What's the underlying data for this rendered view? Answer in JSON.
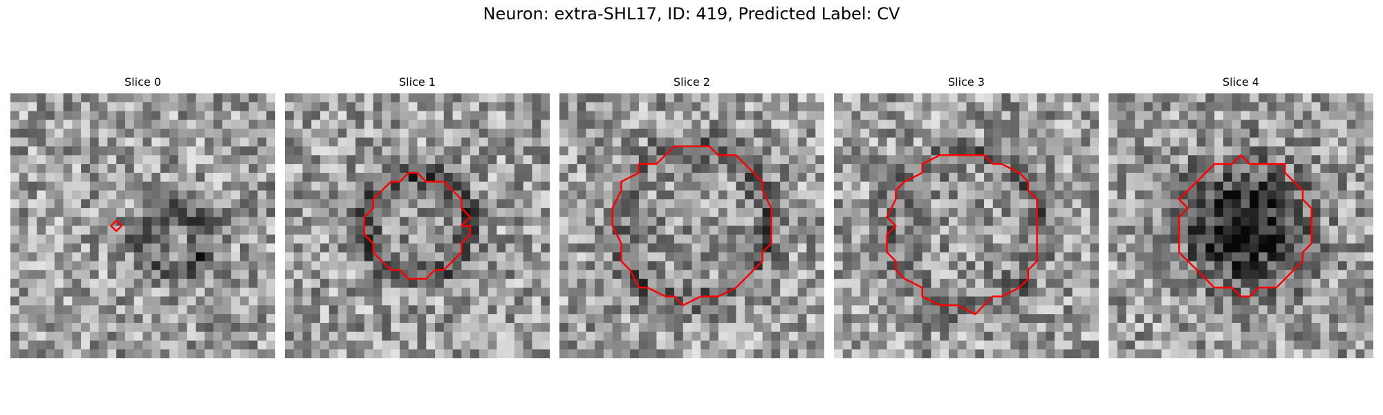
{
  "figure": {
    "title": "Neuron: extra-SHL17, ID: 419, Predicted Label: CV"
  },
  "panels": [
    {
      "label": "Slice 0",
      "seed": 11,
      "contour_radius_frac": 0.02,
      "contour_center": [
        0.4,
        0.5
      ],
      "dark_center": [
        0.62,
        0.55
      ],
      "dark_strength": 0.35
    },
    {
      "label": "Slice 1",
      "seed": 23,
      "contour_radius_frac": 0.19,
      "contour_center": [
        0.5,
        0.5
      ],
      "dark_center": [
        0.5,
        0.5
      ],
      "dark_strength": 0.3
    },
    {
      "label": "Slice 2",
      "seed": 37,
      "contour_radius_frac": 0.29,
      "contour_center": [
        0.5,
        0.49
      ],
      "dark_center": [
        0.5,
        0.49
      ],
      "dark_strength": 0.25
    },
    {
      "label": "Slice 3",
      "seed": 41,
      "contour_radius_frac": 0.29,
      "contour_center": [
        0.5,
        0.52
      ],
      "dark_center": [
        0.5,
        0.52
      ],
      "dark_strength": 0.22
    },
    {
      "label": "Slice 4",
      "seed": 53,
      "contour_radius_frac": 0.25,
      "contour_center": [
        0.52,
        0.5
      ],
      "dark_center": [
        0.52,
        0.5
      ],
      "dark_strength": 0.55
    }
  ],
  "style": {
    "contour_color": "#ff0000",
    "colormap": "grayscale",
    "grid_size": 30
  }
}
